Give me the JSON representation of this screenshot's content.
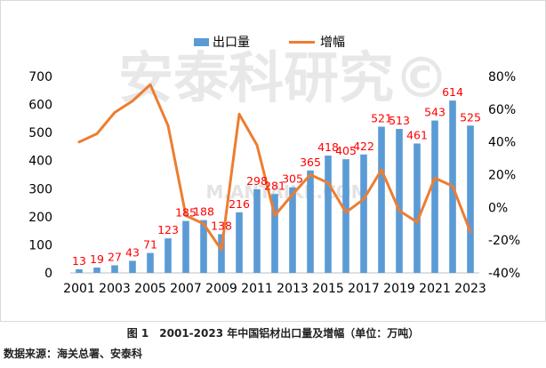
{
  "chart_data": {
    "type": "bar+line",
    "legend": [
      "出口量",
      "增幅"
    ],
    "legend_position": "top-center",
    "watermark": "安泰科研究©",
    "watermark_url": "M.ANTAIKE.COM",
    "categories": [
      "2001",
      "2002",
      "2003",
      "2004",
      "2005",
      "2006",
      "2007",
      "2008",
      "2009",
      "2010",
      "2011",
      "2012",
      "2013",
      "2014",
      "2015",
      "2016",
      "2017",
      "2018",
      "2019",
      "2020",
      "2021",
      "2022",
      "2023"
    ],
    "x_tick_labels": [
      "2001",
      "2003",
      "2005",
      "2007",
      "2009",
      "2011",
      "2013",
      "2015",
      "2017",
      "2019",
      "2021",
      "2023"
    ],
    "series": [
      {
        "name": "出口量",
        "type": "bar",
        "axis": "left",
        "color": "#5b9bd5",
        "label_color": "#ff0000",
        "values": [
          13,
          19,
          27,
          43,
          71,
          123,
          185,
          188,
          138,
          216,
          298,
          281,
          305,
          365,
          418,
          405,
          422,
          521,
          513,
          461,
          543,
          614,
          525
        ]
      },
      {
        "name": "增幅",
        "type": "line",
        "axis": "right",
        "color": "#ed7d31",
        "unit": "%",
        "values": [
          40,
          45,
          58,
          65,
          75,
          50,
          -5,
          -10,
          -26,
          57,
          38,
          -5,
          8,
          20,
          15,
          -3,
          5,
          23,
          -2,
          -9,
          18,
          13,
          -15
        ]
      }
    ],
    "y_left": {
      "min": 0,
      "max": 700,
      "ticks": [
        0,
        100,
        200,
        300,
        400,
        500,
        600,
        700
      ]
    },
    "y_right": {
      "min": -40,
      "max": 80,
      "ticks": [
        -40,
        -20,
        0,
        20,
        40,
        60,
        80
      ],
      "tick_labels": [
        "-40%",
        "-20%",
        "0%",
        "20%",
        "40%",
        "60%",
        "80%"
      ]
    },
    "grid": false
  },
  "caption": "图 1　2001-2023 年中国铝材出口量及增幅（单位：万吨）",
  "source": "数据来源：海关总署、安泰科"
}
